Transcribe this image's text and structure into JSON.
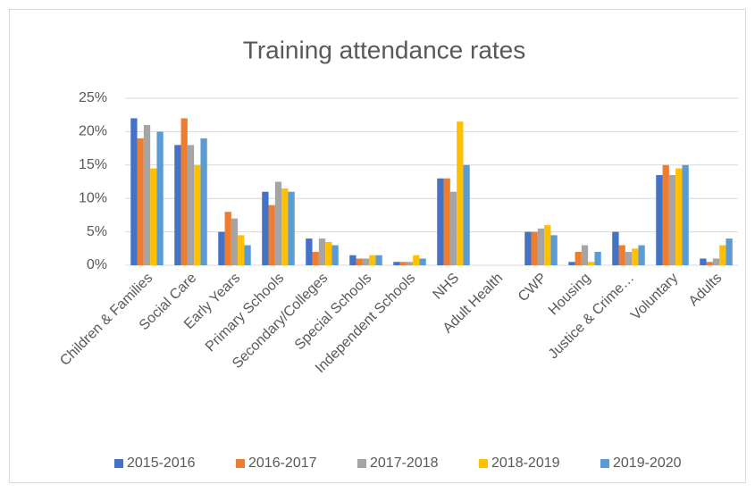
{
  "chart_data": {
    "type": "bar",
    "title": "Training attendance rates",
    "categories": [
      "Children & Families",
      "Social Care",
      "Early Years",
      "Primary Schools",
      "Secondary/Colleges",
      "Special Schools",
      "Independent Schools",
      "NHS",
      "Adult Health",
      "CWP",
      "Housing",
      "Justice & Crime…",
      "Voluntary",
      "Adults"
    ],
    "series": [
      {
        "name": "2015-2016",
        "color": "#4472c4",
        "values": [
          22,
          18,
          5,
          11,
          4,
          1.5,
          0.5,
          13,
          0,
          5,
          0.5,
          5,
          13.5,
          1
        ]
      },
      {
        "name": "2016-2017",
        "color": "#ed7d31",
        "values": [
          19,
          22,
          8,
          9,
          2,
          1,
          0.5,
          13,
          0,
          5,
          2,
          3,
          15,
          0.5
        ]
      },
      {
        "name": "2017-2018",
        "color": "#a5a5a5",
        "values": [
          21,
          18,
          7,
          12.5,
          4,
          1,
          0.5,
          11,
          0,
          5.5,
          3,
          2,
          13.5,
          1
        ]
      },
      {
        "name": "2018-2019",
        "color": "#ffc000",
        "values": [
          14.5,
          15,
          4.5,
          11.5,
          3.5,
          1.5,
          1.5,
          21.5,
          0,
          6,
          0.5,
          2.5,
          14.5,
          3
        ]
      },
      {
        "name": "2019-2020",
        "color": "#5b9bd5",
        "values": [
          20,
          19,
          3,
          11,
          3,
          1.5,
          1,
          15,
          0,
          4.5,
          2,
          3,
          15,
          4
        ]
      }
    ],
    "ylim": [
      0,
      25
    ],
    "yticks": [
      {
        "value": 0,
        "label": "0%"
      },
      {
        "value": 5,
        "label": "5%"
      },
      {
        "value": 10,
        "label": "10%"
      },
      {
        "value": 15,
        "label": "15%"
      },
      {
        "value": 20,
        "label": "20%"
      },
      {
        "value": 25,
        "label": "25%"
      }
    ],
    "grid": true,
    "legend": "bottom"
  }
}
